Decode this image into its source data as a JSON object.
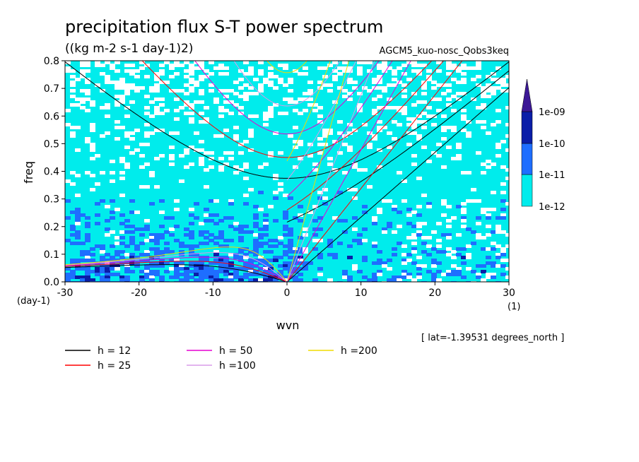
{
  "chart_data": {
    "type": "heatmap",
    "title": "precipitation flux S-T power spectrum",
    "units": "((kg m-2 s-1 day-1)2)",
    "model": "AGCM5_kuo-nosc_Qobs3keq",
    "xlabel": "wvn",
    "ylabel": "freq",
    "x_unit": "(1)",
    "y_unit": "(day-1)",
    "latitude_note": "[ lat=-1.39531 degrees_north ]",
    "xlim": [
      -30,
      30
    ],
    "ylim": [
      0,
      0.8
    ],
    "x_ticks": [
      -30,
      -20,
      -10,
      0,
      10,
      20,
      30
    ],
    "x_tick_labels": [
      "-30",
      "-20",
      "-10",
      "0",
      "10",
      "20",
      "30"
    ],
    "y_ticks": [
      0,
      0.1,
      0.2,
      0.3,
      0.4,
      0.5,
      0.6,
      0.7,
      0.8
    ],
    "y_tick_labels": [
      "0.0",
      "0.1",
      "0.2",
      "0.3",
      "0.4",
      "0.5",
      "0.6",
      "0.7",
      "0.8"
    ],
    "colorbar": {
      "levels": [
        "1e-12",
        "1e-11",
        "1e-10",
        "1e-09"
      ],
      "colors": [
        "#ffffff",
        "#00ecec",
        "#1e6eff",
        "#0a1ea8",
        "#3c1896"
      ]
    },
    "dispersion_curves": [
      {
        "name": "h = 12",
        "h": 12,
        "color": "#000000"
      },
      {
        "name": "h = 25",
        "h": 25,
        "color": "#ff0000"
      },
      {
        "name": "h = 50",
        "h": 50,
        "color": "#e600d2"
      },
      {
        "name": "h =100",
        "h": 100,
        "color": "#d89be8"
      },
      {
        "name": "h =200",
        "h": 200,
        "color": "#f0dc00"
      }
    ]
  }
}
